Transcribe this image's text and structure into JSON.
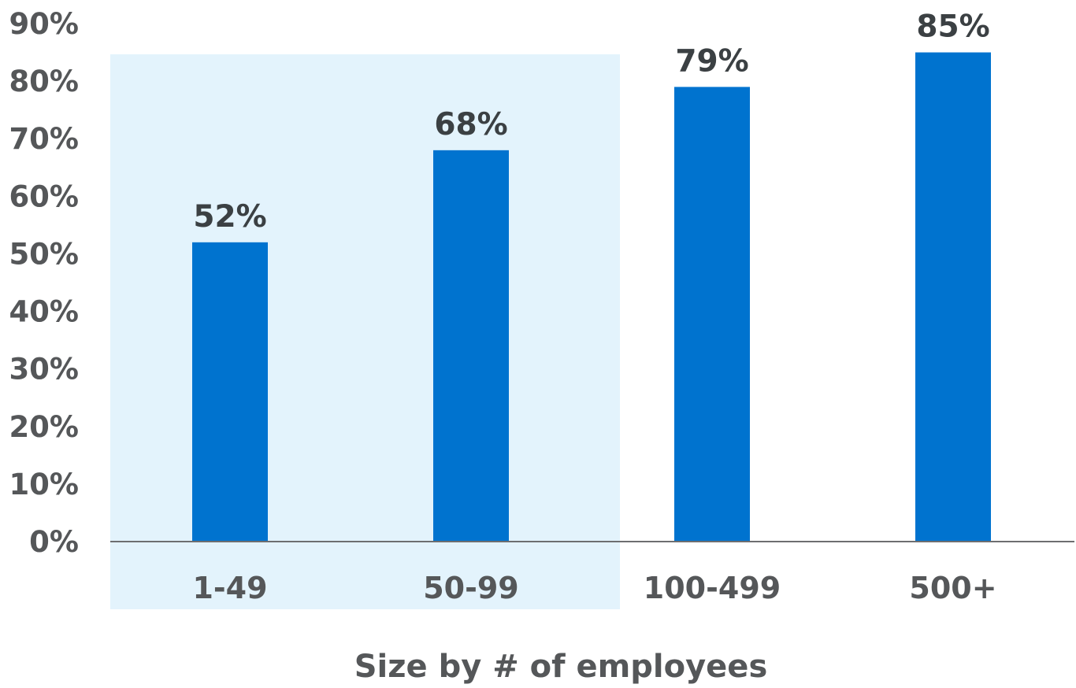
{
  "colors": {
    "bar": "#0073cf",
    "highlight": "#e3f3fc",
    "axis": "#6d6e70",
    "tick_text": "#555759",
    "value_text": "#3b4043"
  },
  "chart_data": {
    "type": "bar",
    "title": "",
    "xlabel": "Size by # of employees",
    "ylabel": "",
    "categories": [
      "1-49",
      "50-99",
      "100-499",
      "500+"
    ],
    "values": [
      52,
      68,
      79,
      85
    ],
    "value_labels": [
      "52%",
      "68%",
      "79%",
      "85%"
    ],
    "ylim": [
      0,
      90
    ],
    "yticks": [
      "0%",
      "10%",
      "20%",
      "30%",
      "40%",
      "50%",
      "60%",
      "70%",
      "80%",
      "90%"
    ],
    "grid": false,
    "legend": "none",
    "highlighted_categories": [
      "1-49",
      "50-99"
    ]
  }
}
